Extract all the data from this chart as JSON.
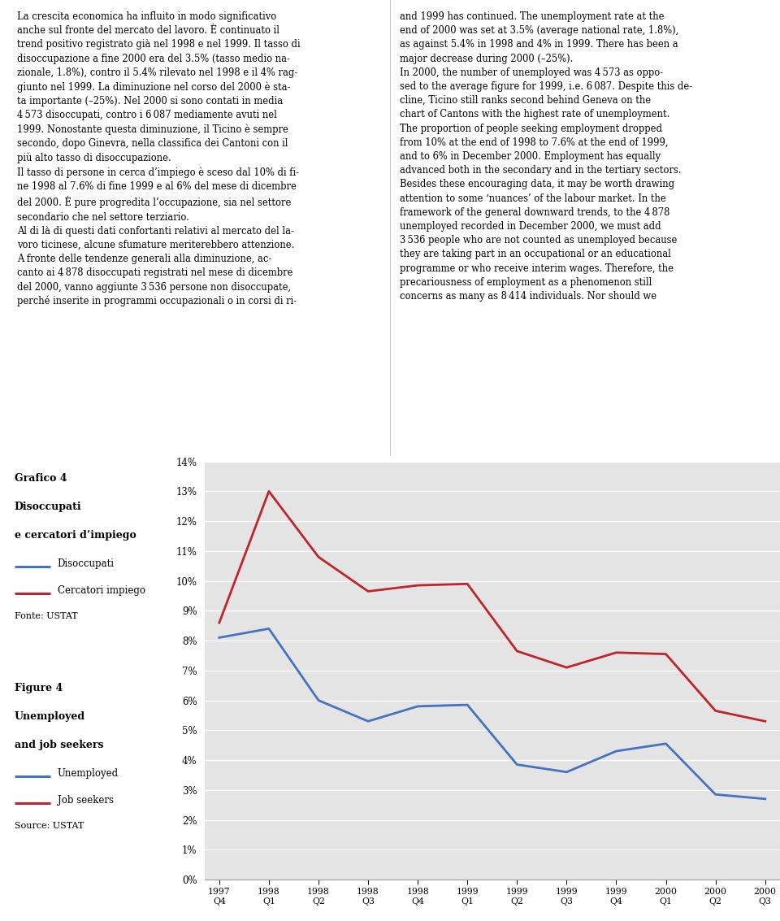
{
  "x_labels": [
    "1997\nQ4",
    "1998\nQ1",
    "1998\nQ2",
    "1998\nQ3",
    "1998\nQ4",
    "1999\nQ1",
    "1999\nQ2",
    "1999\nQ3",
    "1999\nQ4",
    "2000\nQ1",
    "2000\nQ2",
    "2000\nQ3"
  ],
  "blue_line": [
    8.1,
    8.4,
    6.0,
    5.3,
    5.8,
    5.85,
    3.85,
    3.6,
    4.3,
    4.55,
    2.85,
    2.7
  ],
  "red_line": [
    8.6,
    13.0,
    10.8,
    9.65,
    9.85,
    9.9,
    7.65,
    7.1,
    7.6,
    7.55,
    5.65,
    5.3
  ],
  "blue_color": "#4472C4",
  "red_color": "#C0242B",
  "ylim": [
    0,
    14
  ],
  "yticks": [
    0,
    1,
    2,
    3,
    4,
    5,
    6,
    7,
    8,
    9,
    10,
    11,
    12,
    13,
    14
  ],
  "chart_bg": "#E4E4E4",
  "sidebar_color": "#7F7F7F",
  "left_col_text": "La crescita economica ha influito in modo significativo\nanche sul fronte del mercato del lavoro. È continuato il\ntrend positivo registrato già nel 1998 e nel 1999. Il tasso di\ndisoccupazione a fine 2000 era del 3.5% (tasso medio na-\nzionale, 1.8%), contro il 5.4% rilevato nel 1998 e il 4% rag-\ngiunto nel 1999. La diminuzione nel corso del 2000 è sta-\nta importante (–25%). Nel 2000 si sono contati in media\n4 573 disoccupati, contro i 6 087 mediamente avuti nel\n1999. Nonostante questa diminuzione, il Ticino è sempre\nsecondo, dopo Ginevra, nella classifica dei Cantoni con il\npiù alto tasso di disoccupazione.\nIl tasso di persone in cerca d’impiego è sceso dal 10% di fi-\nne 1998 al 7.6% di fine 1999 e al 6% del mese di dicembre\ndel 2000. È pure progredita l’occupazione, sia nel settore\nsecondario che nel settore terziario.\nAl di là di questi dati confortanti relativi al mercato del la-\nvoro ticinese, alcune sfumature meriterebbero attenzione.\nA fronte delle tendenze generali alla diminuzione, ac-\ncanto ai 4 878 disoccupati registrati nel mese di dicembre\ndel 2000, vanno aggiunte 3 536 persone non disoccupate,\nperché inserite in programmi occupazionali o in corsi di ri-",
  "right_col_text": "and 1999 has continued. The unemployment rate at the\nend of 2000 was set at 3.5% (average national rate, 1.8%),\nas against 5.4% in 1998 and 4% in 1999. There has been a\nmajor decrease during 2000 (–25%).\nIn 2000, the number of unemployed was 4 573 as oppo-\nsed to the average figure for 1999, i.e. 6 087. Despite this de-\ncline, Ticino still ranks second behind Geneva on the\nchart of Cantons with the highest rate of unemployment.\nThe proportion of people seeking employment dropped\nfrom 10% at the end of 1998 to 7.6% at the end of 1999,\nand to 6% in December 2000. Employment has equally\nadvanced both in the secondary and in the tertiary sectors.\nBesides these encouraging data, it may be worth drawing\nattention to some ‘nuances’ of the labour market. In the\nframework of the general downward trends, to the 4 878\nunemployed recorded in December 2000, we must add\n3 536 people who are not counted as unemployed because\nthey are taking part in an occupational or an educational\nprogramme or who receive interim wages. Therefore, the\nprecariousness of employment as a phenomenon still\nconcerns as many as 8 414 individuals. Nor should we"
}
